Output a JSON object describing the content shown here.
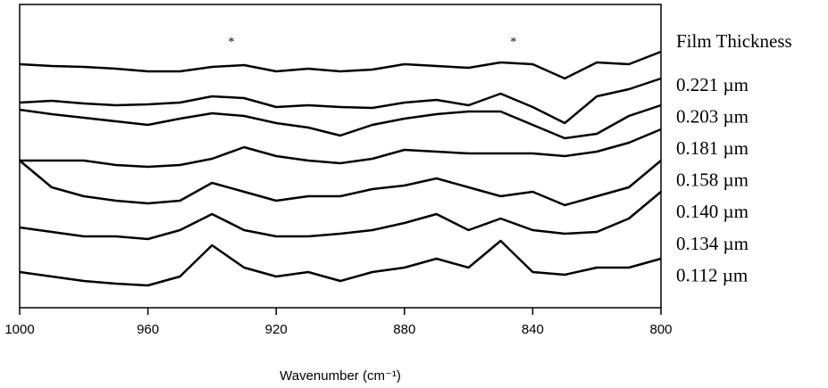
{
  "chart_data": {
    "type": "line",
    "x_label": "Wavenumber (cm⁻¹)",
    "legend_title": "Film Thickness",
    "x": [
      1000,
      990,
      980,
      970,
      960,
      950,
      940,
      930,
      920,
      910,
      900,
      890,
      880,
      870,
      860,
      850,
      840,
      830,
      820,
      810,
      800
    ],
    "xlim": [
      1000,
      800
    ],
    "xticks": [
      1000,
      960,
      920,
      880,
      840,
      800
    ],
    "ylim": [
      0,
      340
    ],
    "series": [
      {
        "name": "0.221 µm",
        "color": "#000000",
        "values": [
          273,
          271,
          270,
          268,
          265,
          265,
          270,
          272,
          265,
          268,
          265,
          267,
          273,
          271,
          269,
          275,
          273,
          257,
          275,
          273,
          287
        ]
      },
      {
        "name": "0.203 µm",
        "color": "#000000",
        "values": [
          230,
          232,
          229,
          227,
          228,
          230,
          237,
          235,
          225,
          227,
          225,
          224,
          230,
          233,
          227,
          240,
          225,
          207,
          237,
          245,
          257
        ]
      },
      {
        "name": "0.181 µm",
        "color": "#000000",
        "values": [
          222,
          217,
          213,
          209,
          205,
          212,
          218,
          215,
          207,
          202,
          193,
          205,
          212,
          217,
          220,
          220,
          205,
          190,
          195,
          215,
          227
        ]
      },
      {
        "name": "0.158 µm",
        "color": "#000000",
        "values": [
          165,
          165,
          165,
          160,
          158,
          160,
          167,
          180,
          170,
          165,
          162,
          167,
          177,
          175,
          173,
          173,
          173,
          170,
          175,
          185,
          200
        ]
      },
      {
        "name": "0.140 µm",
        "color": "#000000",
        "values": [
          165,
          135,
          125,
          120,
          117,
          120,
          140,
          130,
          120,
          125,
          125,
          133,
          137,
          145,
          135,
          125,
          130,
          115,
          125,
          135,
          165
        ]
      },
      {
        "name": "0.134 µm",
        "color": "#000000",
        "values": [
          90,
          85,
          80,
          80,
          77,
          87,
          105,
          87,
          80,
          80,
          83,
          87,
          95,
          105,
          87,
          100,
          87,
          83,
          85,
          100,
          130
        ]
      },
      {
        "name": "0.112 µm",
        "color": "#000000",
        "values": [
          40,
          35,
          30,
          27,
          25,
          35,
          70,
          45,
          35,
          40,
          30,
          40,
          45,
          55,
          45,
          75,
          40,
          37,
          45,
          45,
          55
        ]
      }
    ],
    "annotations": [
      {
        "text": "*",
        "x": 934
      },
      {
        "text": "*",
        "x": 846
      }
    ]
  }
}
